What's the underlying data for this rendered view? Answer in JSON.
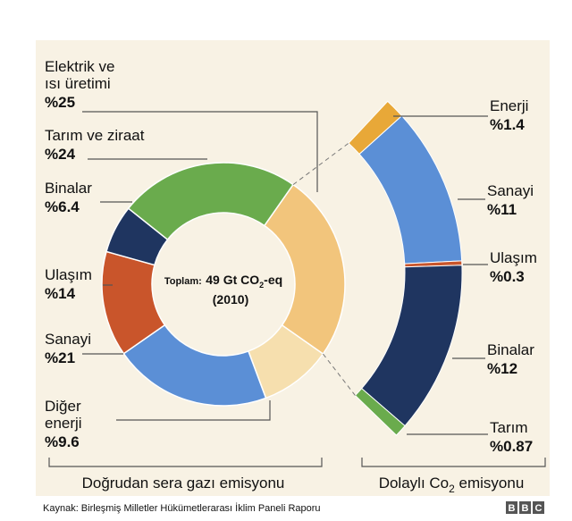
{
  "chart_data": {
    "type": "donut",
    "center_label": {
      "prefix": "Toplam:",
      "main": "49 Gt CO",
      "sub": "2",
      "suffix": "-eq",
      "year": "(2010)"
    },
    "categories": [
      [
        "Elektrik ve",
        "ısı üretimi"
      ],
      [
        "Diğer",
        "enerji"
      ],
      [
        "Sanayi"
      ],
      [
        "Ulaşım"
      ],
      [
        "Binalar"
      ],
      [
        "Tarım ve ziraat"
      ]
    ],
    "values": [
      25,
      9.6,
      21,
      14,
      6.4,
      24
    ],
    "value_labels": [
      "%25",
      "%9.6",
      "%21",
      "%14",
      "%6.4",
      "%24"
    ],
    "colors": [
      "#f2c57c",
      "#f6dfae",
      "#5b8fd6",
      "#c9552b",
      "#1f3560",
      "#6aab4d"
    ],
    "breakdown": {
      "categories": [
        "Enerji",
        "Sanayi",
        "Ulaşım",
        "Binalar",
        "Tarım"
      ],
      "values": [
        1.4,
        11,
        0.3,
        12,
        0.87
      ],
      "value_labels": [
        "%1.4",
        "%11",
        "%0.3",
        "%12",
        "%0.87"
      ],
      "colors": [
        "#e8a838",
        "#5b8fd6",
        "#c9552b",
        "#1f3560",
        "#6aab4d"
      ]
    },
    "direct_label": "Doğrudan sera gazı emisyonu",
    "indirect_label": {
      "main": "Dolaylı Co",
      "sub": "2",
      "suffix": " emisyonu"
    }
  },
  "footer": {
    "source": "Kaynak: Birleşmiş Milletler Hükümetlerarası İklim Paneli Raporu",
    "logo": [
      "B",
      "B",
      "C"
    ]
  }
}
